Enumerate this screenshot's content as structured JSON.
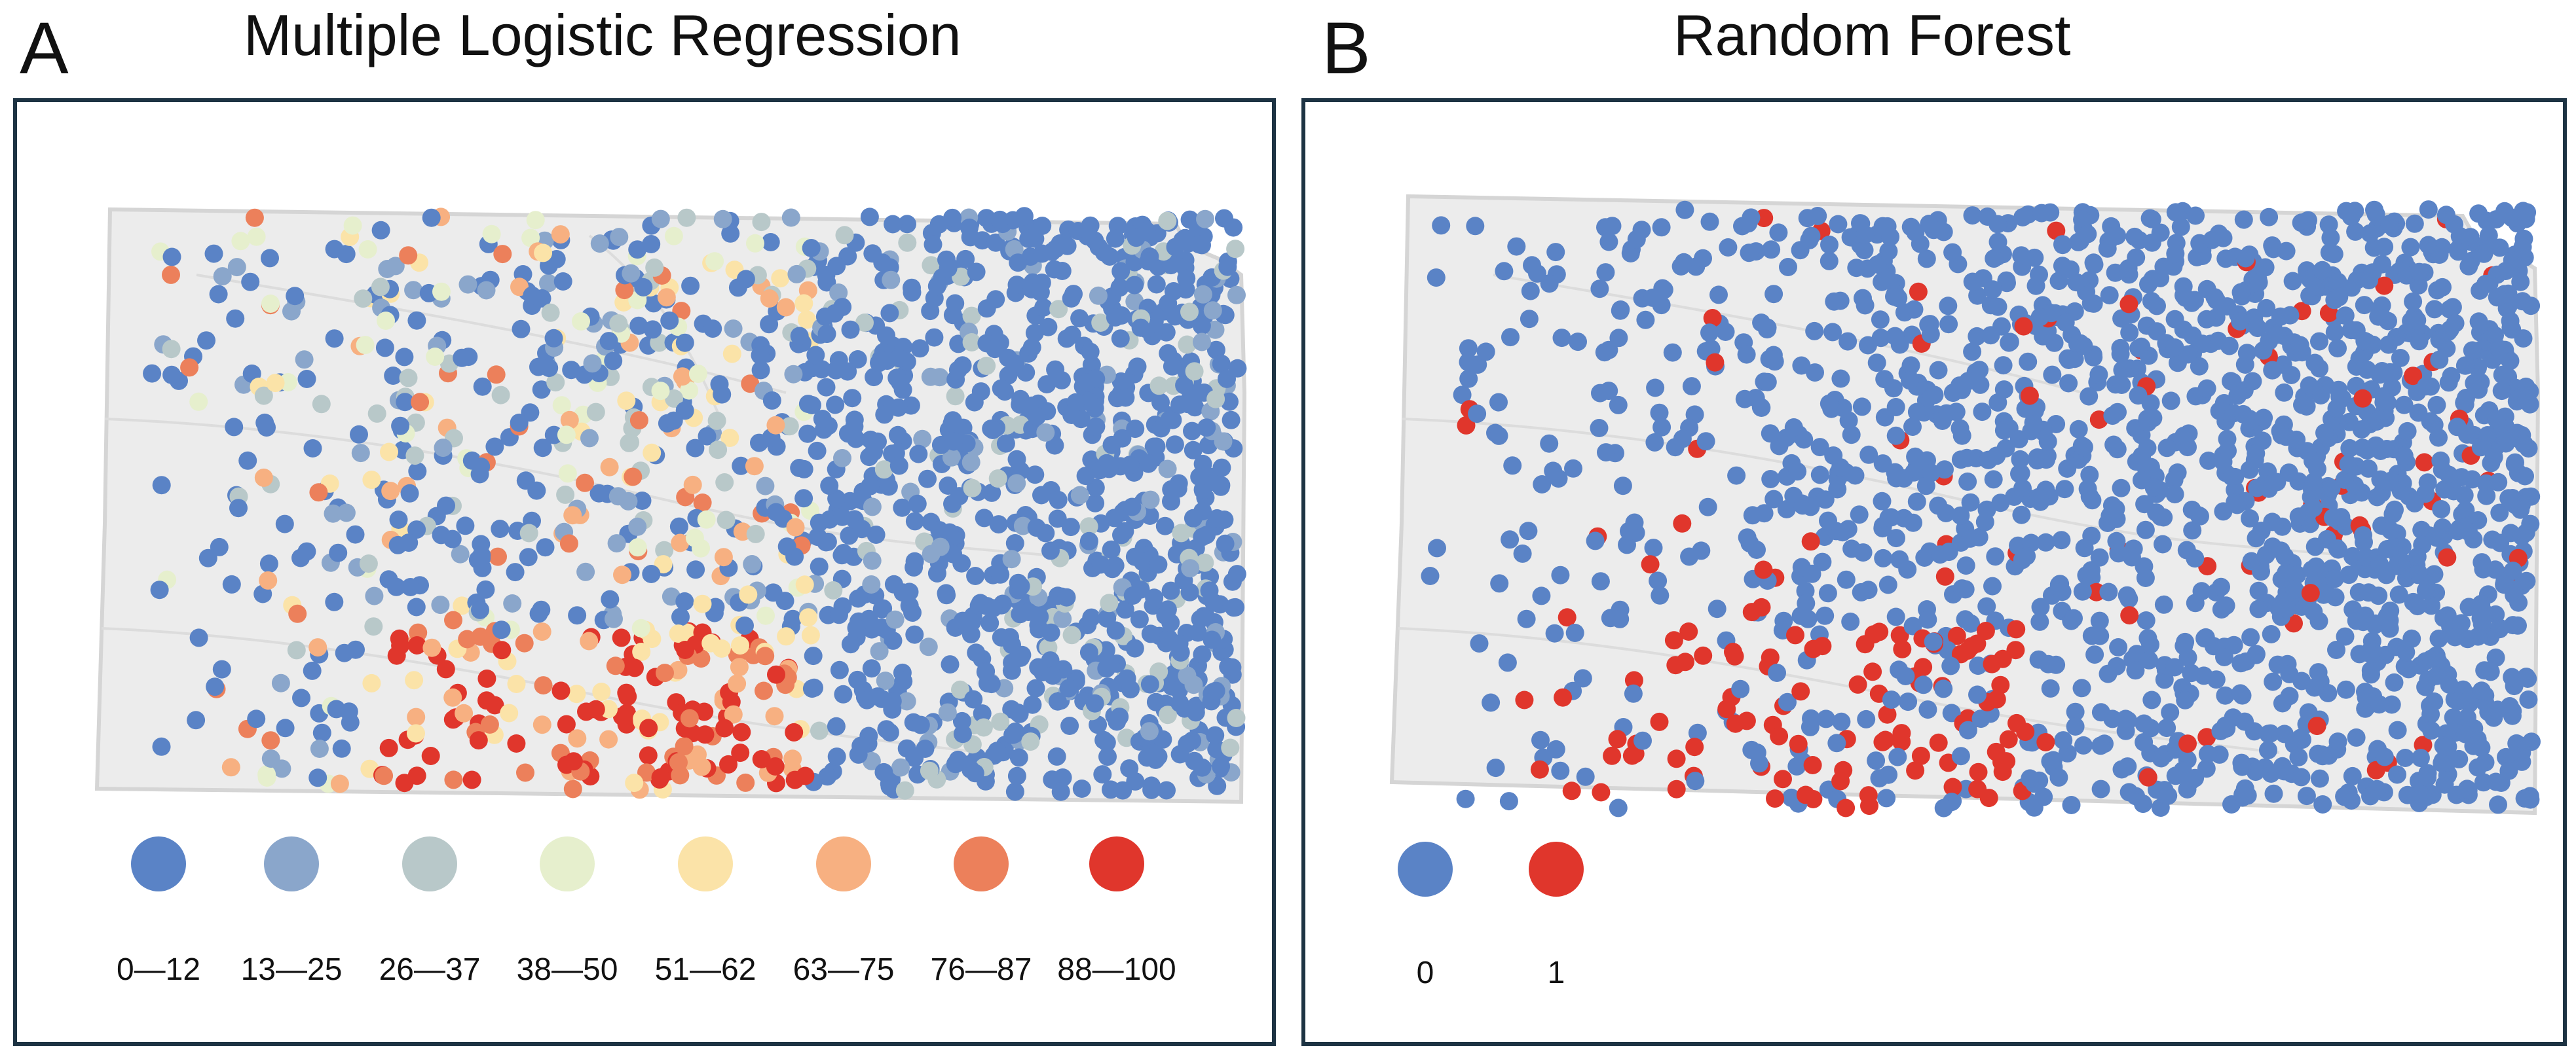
{
  "panels": [
    {
      "letter": "A",
      "title": "Multiple Logistic Regression",
      "map": "Kansas",
      "legend": [
        {
          "label": "0—12",
          "color": "#5a83c6"
        },
        {
          "label": "13—25",
          "color": "#8aa6cb"
        },
        {
          "label": "26—37",
          "color": "#b8c8c9"
        },
        {
          "label": "38—50",
          "color": "#e6efcd"
        },
        {
          "label": "51—62",
          "color": "#fbe3a8"
        },
        {
          "label": "63—75",
          "color": "#f7b081"
        },
        {
          "label": "76—87",
          "color": "#ec805b"
        },
        {
          "label": "88—100",
          "color": "#e0362c"
        }
      ]
    },
    {
      "letter": "B",
      "title": "Random Forest",
      "map": "Kansas",
      "legend": [
        {
          "label": "0",
          "color": "#5a83c6"
        },
        {
          "label": "1",
          "color": "#e0362c"
        }
      ]
    }
  ],
  "colors": {
    "frame": "#1d3343",
    "state_fill": "#ececec",
    "state_outline": "#d8d8d8",
    "county_lines": "#dcdcdc"
  }
}
